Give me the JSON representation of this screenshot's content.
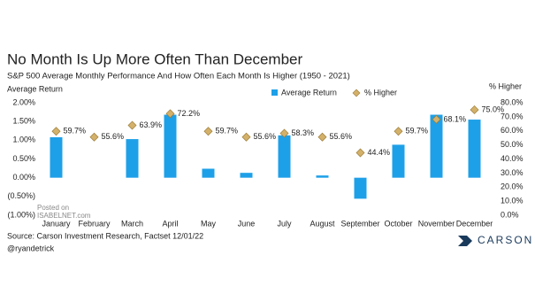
{
  "chart_data": {
    "type": "bar",
    "title": "No Month Is Up More Often Than December",
    "subtitle": "S&P 500 Average Monthly Performance And How Often Each Month Is Higher (1950 - 2021)",
    "ylabel": "Average Return",
    "y2label": "% Higher",
    "categories": [
      "January",
      "February",
      "March",
      "April",
      "May",
      "June",
      "July",
      "August",
      "September",
      "October",
      "November",
      "December"
    ],
    "series": [
      {
        "name": "Average Return",
        "color": "#1ea0e8",
        "values": [
          1.08,
          0.0,
          1.03,
          1.68,
          0.24,
          0.13,
          1.13,
          0.06,
          -0.56,
          0.88,
          1.68,
          1.55
        ]
      },
      {
        "name": "% Higher",
        "color": "#d4b16a",
        "axis": "y2",
        "values": [
          59.7,
          55.6,
          63.9,
          72.2,
          59.7,
          55.6,
          58.3,
          55.6,
          44.4,
          59.7,
          68.1,
          75.0
        ],
        "value_labels": [
          "59.7%",
          "55.6%",
          "63.9%",
          "72.2%",
          "59.7%",
          "55.6%",
          "58.3%",
          "55.6%",
          "44.4%",
          "59.7%",
          "68.1%",
          "75.0%"
        ]
      }
    ],
    "ylim": [
      -1.0,
      2.0
    ],
    "yticks": [
      {
        "value": -1.0,
        "label": "(1.00%)"
      },
      {
        "value": -0.5,
        "label": "(0.50%)"
      },
      {
        "value": 0,
        "label": "0.00%"
      },
      {
        "value": 0.5,
        "label": "0.50%"
      },
      {
        "value": 1.0,
        "label": "1.00%"
      },
      {
        "value": 1.5,
        "label": "1.50%"
      },
      {
        "value": 2.0,
        "label": "2.00%"
      }
    ],
    "y2lim": [
      0,
      80
    ],
    "y2ticks": [
      {
        "value": 0,
        "label": "0.0%"
      },
      {
        "value": 10,
        "label": "10.0%"
      },
      {
        "value": 20,
        "label": "20.0%"
      },
      {
        "value": 30,
        "label": "30.0%"
      },
      {
        "value": 40,
        "label": "40.0%"
      },
      {
        "value": 50,
        "label": "50.0%"
      },
      {
        "value": 60,
        "label": "60.0%"
      },
      {
        "value": 70,
        "label": "70.0%"
      },
      {
        "value": 80,
        "label": "80.0%"
      }
    ],
    "grid": false,
    "legend": "top",
    "source": "Source: Carson Investment Research, Factset 12/01/22",
    "handle": "@ryandetrick",
    "logo": "CARSON",
    "watermark": [
      "Posted on",
      "ISABELNET.com"
    ]
  }
}
